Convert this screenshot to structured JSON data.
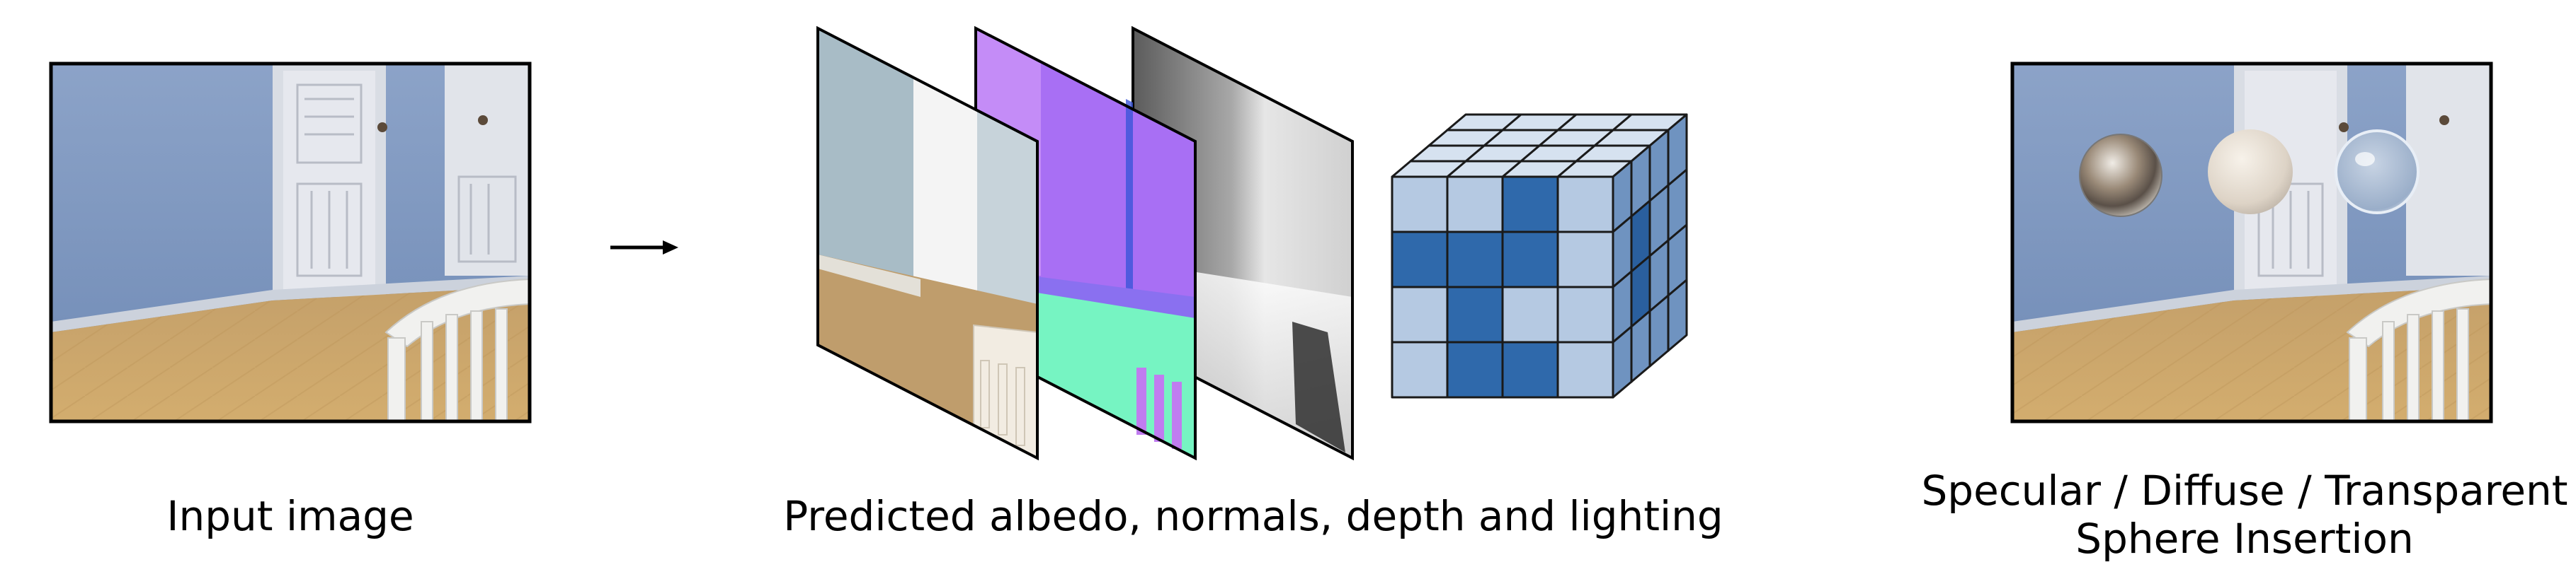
{
  "captions": {
    "input": "Input image",
    "predicted": "Predicted albedo, normals, depth and lighting",
    "insertion_line1": "Specular / Diffuse / Transparent",
    "insertion_line2": "Sphere Insertion"
  },
  "colors": {
    "wall_blue": "#7e97be",
    "floor_tan": "#caa367",
    "door_white": "#dcdfe6",
    "normal_purple": "#a66cf2",
    "normal_green": "#73f2c1",
    "cube_dark": "#2c66a8",
    "cube_light": "#b7cbe3"
  }
}
